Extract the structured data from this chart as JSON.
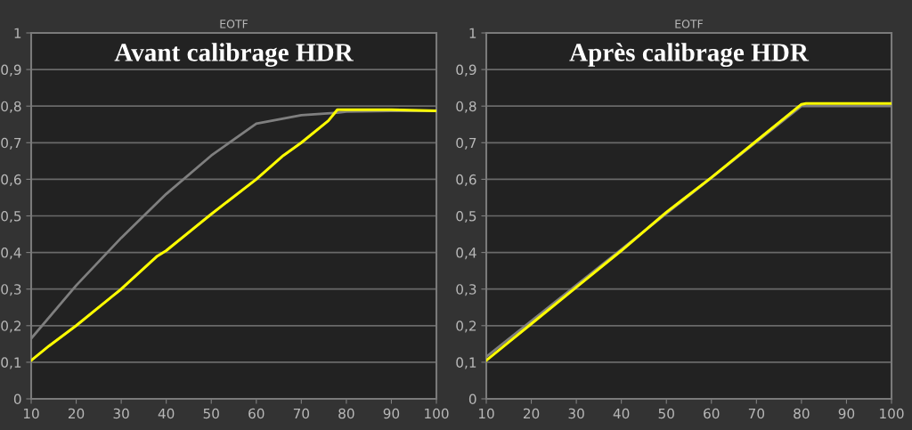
{
  "chart_data": [
    {
      "type": "line",
      "title": "EOTF",
      "annotations": [
        "Avant calibrage HDR"
      ],
      "series": [
        {
          "color": "#7f7f7f",
          "x": [
            10,
            20,
            30,
            40,
            50,
            60,
            70,
            78,
            80,
            90,
            100
          ],
          "values": [
            0.165,
            0.31,
            0.44,
            0.56,
            0.665,
            0.752,
            0.775,
            0.782,
            0.785,
            0.787,
            0.787
          ]
        },
        {
          "color": "#ffff00",
          "x": [
            10,
            14,
            20,
            28,
            30,
            38,
            40,
            50,
            60,
            66,
            70,
            76,
            78,
            80,
            90,
            100
          ],
          "values": [
            0.105,
            0.145,
            0.2,
            0.28,
            0.3,
            0.39,
            0.405,
            0.505,
            0.6,
            0.665,
            0.7,
            0.76,
            0.79,
            0.79,
            0.79,
            0.787
          ]
        }
      ],
      "xlim": [
        10,
        100
      ],
      "xticks": [
        10,
        20,
        30,
        40,
        50,
        60,
        70,
        80,
        90,
        100
      ],
      "ylim": [
        0,
        1
      ],
      "yticks": [
        0,
        {
          "value": 0.1,
          "label": "0,1"
        },
        {
          "value": 0.2,
          "label": "0,2"
        },
        {
          "value": 0.3,
          "label": "0,3"
        },
        {
          "value": 0.4,
          "label": "0,4"
        },
        {
          "value": 0.5,
          "label": "0,5"
        },
        {
          "value": 0.6,
          "label": "0,6"
        },
        {
          "value": 0.7,
          "label": "0,7"
        },
        {
          "value": 0.8,
          "label": "0,8"
        },
        {
          "value": 0.9,
          "label": "0,9"
        },
        1
      ],
      "grid": "y"
    },
    {
      "type": "line",
      "title": "EOTF",
      "annotations": [
        "Après calibrage HDR"
      ],
      "series": [
        {
          "color": "#7f7f7f",
          "x": [
            10,
            80,
            90,
            100
          ],
          "values": [
            0.115,
            0.8,
            0.8,
            0.8
          ]
        },
        {
          "color": "#ffff00",
          "x": [
            10,
            14,
            20,
            30,
            40,
            50,
            60,
            70,
            80,
            81,
            90,
            100
          ],
          "values": [
            0.105,
            0.145,
            0.205,
            0.305,
            0.405,
            0.51,
            0.605,
            0.705,
            0.805,
            0.807,
            0.807,
            0.807
          ]
        }
      ],
      "xlim": [
        10,
        100
      ],
      "xticks": [
        10,
        20,
        30,
        40,
        50,
        60,
        70,
        80,
        90,
        100
      ],
      "ylim": [
        0,
        1
      ],
      "yticks": [
        0,
        {
          "value": 0.1,
          "label": "0,1"
        },
        {
          "value": 0.2,
          "label": "0,2"
        },
        {
          "value": 0.3,
          "label": "0,3"
        },
        {
          "value": 0.4,
          "label": "0,4"
        },
        {
          "value": 0.5,
          "label": "0,5"
        },
        {
          "value": 0.6,
          "label": "0,6"
        },
        {
          "value": 0.7,
          "label": "0,7"
        },
        {
          "value": 0.8,
          "label": "0,8"
        },
        {
          "value": 0.9,
          "label": "0,9"
        },
        1
      ],
      "grid": "y"
    }
  ]
}
